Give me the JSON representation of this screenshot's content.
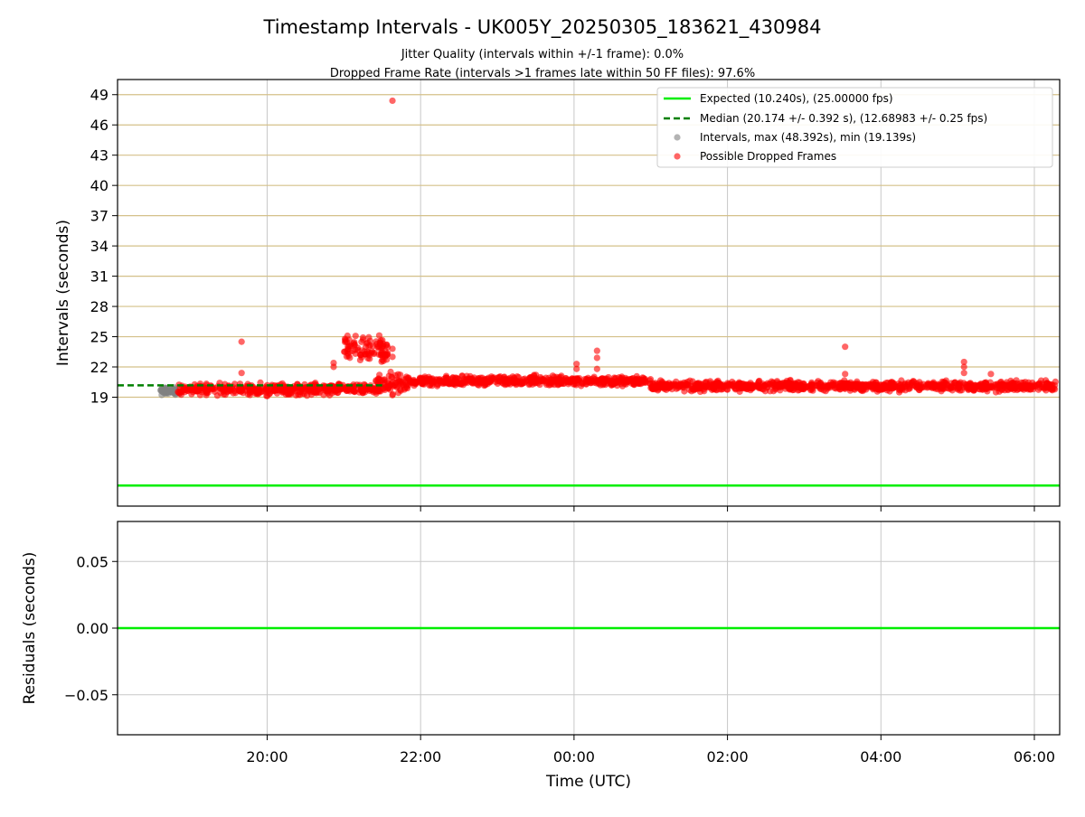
{
  "figure": {
    "title": "Timestamp Intervals - UK005Y_20250305_183621_430984",
    "subtitle_line1": "Jitter Quality (intervals within +/-1 frame): 0.0%",
    "subtitle_line2": "Dropped Frame Rate (intervals >1 frames late within 50 FF files): 97.6%"
  },
  "colors": {
    "expected": "#00ee00",
    "median": "#008000",
    "intervals": "#808080",
    "dropped": "#ff0000",
    "hgrid_top": "#d4c089",
    "vgrid": "#c8c8c8",
    "axis": "#000000"
  },
  "chart_data": [
    {
      "type": "scatter",
      "panel": "intervals",
      "ylabel": "Intervals (seconds)",
      "xlabel": "",
      "x_ticks": [
        "20:00",
        "22:00",
        "00:00",
        "02:00",
        "04:00",
        "06:00"
      ],
      "y_ticks": [
        19,
        22,
        25,
        28,
        31,
        34,
        37,
        40,
        43,
        46,
        49
      ],
      "ylim": [
        8.2,
        50.5
      ],
      "xlim_hours_since_1800": [
        0.05,
        12.33
      ],
      "grid": true,
      "legend_position": "top-right",
      "legend": [
        "Expected (10.240s), (25.00000 fps)",
        "Median (20.174 +/- 0.392 s), (12.68983 +/- 0.25 fps)",
        "Intervals, max (48.392s), min (19.139s)",
        "Possible Dropped Frames"
      ],
      "series": [
        {
          "name": "Expected (10.240s), (25.00000 fps)",
          "kind": "hline",
          "y": 10.24
        },
        {
          "name": "Median (20.174 +/- 0.392 s), (12.68983 +/- 0.25 fps)",
          "kind": "hline-dashed",
          "y": 20.174,
          "x_range": [
            "18:00",
            "21:30"
          ]
        },
        {
          "name": "Intervals, max (48.392s), min (19.139s)",
          "kind": "scatter",
          "x_range": [
            "18:36",
            "18:52"
          ],
          "y_center": 19.6,
          "y_spread": 0.5
        },
        {
          "name": "Possible Dropped Frames",
          "kind": "scatter",
          "segments": [
            {
              "from": "18:50",
              "to": "21:00",
              "y_center": 19.8,
              "y_spread": 0.8
            },
            {
              "from": "21:00",
              "to": "21:28",
              "y_center": 19.8,
              "y_spread": 0.6
            },
            {
              "from": "21:25",
              "to": "21:50",
              "y_center": 20.3,
              "y_spread": 1.4
            },
            {
              "from": "21:00",
              "to": "21:35",
              "y_center": 23.6,
              "y_spread": 2.0
            },
            {
              "from": "21:50",
              "to": "01:00",
              "y_center": 20.6,
              "y_spread": 0.7
            },
            {
              "from": "01:00",
              "to": "06:17",
              "y_center": 20.1,
              "y_spread": 0.7
            }
          ],
          "outliers": [
            {
              "x": "19:40",
              "y": 24.5
            },
            {
              "x": "19:40",
              "y": 21.4
            },
            {
              "x": "20:52",
              "y": 22.4
            },
            {
              "x": "20:52",
              "y": 22.0
            },
            {
              "x": "21:38",
              "y": 48.4
            },
            {
              "x": "21:38",
              "y": 19.2
            },
            {
              "x": "21:38",
              "y": 23.8
            },
            {
              "x": "21:38",
              "y": 23.0
            },
            {
              "x": "00:02",
              "y": 22.3
            },
            {
              "x": "00:02",
              "y": 21.8
            },
            {
              "x": "00:18",
              "y": 23.6
            },
            {
              "x": "00:18",
              "y": 22.9
            },
            {
              "x": "00:18",
              "y": 21.8
            },
            {
              "x": "03:32",
              "y": 24.0
            },
            {
              "x": "03:32",
              "y": 21.3
            },
            {
              "x": "05:05",
              "y": 22.5
            },
            {
              "x": "05:05",
              "y": 22.0
            },
            {
              "x": "05:05",
              "y": 21.4
            },
            {
              "x": "05:26",
              "y": 21.3
            }
          ]
        }
      ]
    },
    {
      "type": "line",
      "panel": "residuals",
      "xlabel": "Time (UTC)",
      "ylabel": "Residuals (seconds)",
      "x_ticks": [
        "20:00",
        "22:00",
        "00:00",
        "02:00",
        "04:00",
        "06:00"
      ],
      "y_ticks": [
        "0.05",
        "0.00",
        "−0.05"
      ],
      "y_tick_values": [
        0.05,
        0.0,
        -0.05
      ],
      "ylim": [
        -0.08,
        0.08
      ],
      "grid": true,
      "series": [
        {
          "name": "",
          "kind": "hline",
          "y": 0.0
        }
      ]
    }
  ]
}
